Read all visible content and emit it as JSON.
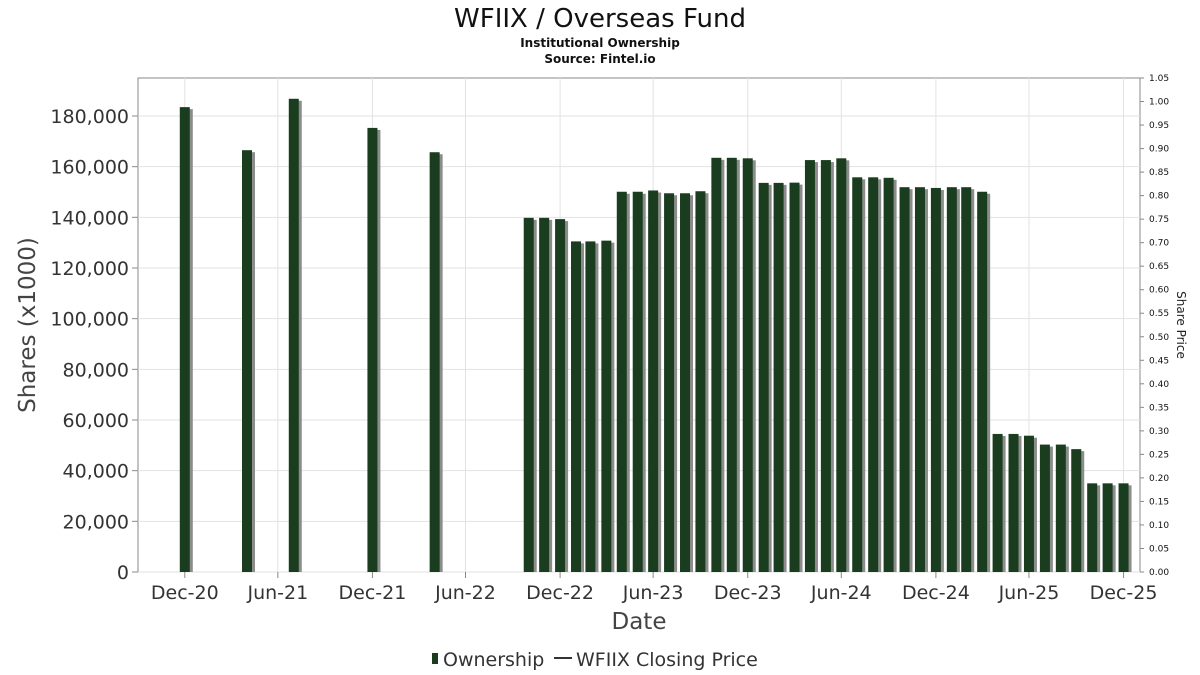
{
  "chart_data": {
    "type": "bar",
    "title": "WFIIX / Overseas Fund",
    "subtitle": "Institutional Ownership",
    "source": "Source: Fintel.io",
    "xlabel": "Date",
    "ylabel": "Shares (x1000)",
    "y2label": "Share Price",
    "ylim": [
      0,
      195000
    ],
    "y2lim": [
      0,
      1.05
    ],
    "xlim": [
      "2020-10-01",
      "2026-02-01"
    ],
    "yticks": [
      "0",
      "20,000",
      "40,000",
      "60,000",
      "80,000",
      "100,000",
      "120,000",
      "140,000",
      "160,000",
      "180,000"
    ],
    "y2ticks": [
      "0.00",
      "0.05",
      "0.10",
      "0.15",
      "0.20",
      "0.25",
      "0.30",
      "0.35",
      "0.40",
      "0.45",
      "0.50",
      "0.55",
      "0.60",
      "0.65",
      "0.70",
      "0.75",
      "0.80",
      "0.85",
      "0.90",
      "0.95",
      "1.00",
      "1.05"
    ],
    "xticks": [
      {
        "label": "Dec-20",
        "date": "2020-12-31"
      },
      {
        "label": "Jun-21",
        "date": "2021-06-30"
      },
      {
        "label": "Dec-21",
        "date": "2021-12-31"
      },
      {
        "label": "Jun-22",
        "date": "2022-06-30"
      },
      {
        "label": "Dec-22",
        "date": "2022-12-31"
      },
      {
        "label": "Jun-23",
        "date": "2023-06-30"
      },
      {
        "label": "Dec-23",
        "date": "2023-12-31"
      },
      {
        "label": "Jun-24",
        "date": "2024-06-30"
      },
      {
        "label": "Dec-24",
        "date": "2024-12-31"
      },
      {
        "label": "Jun-25",
        "date": "2025-06-30"
      },
      {
        "label": "Dec-25",
        "date": "2025-12-31"
      }
    ],
    "grid": true,
    "legend_position": "bottom",
    "series": [
      {
        "name": "Ownership",
        "color": "#1a3d1f",
        "points": [
          {
            "x": "2020-12-31",
            "y": 183500
          },
          {
            "x": "2021-05-01",
            "y": 166500
          },
          {
            "x": "2021-07-31",
            "y": 186800
          },
          {
            "x": "2021-12-31",
            "y": 175300
          },
          {
            "x": "2022-05-01",
            "y": 165700
          },
          {
            "x": "2022-10-31",
            "y": 139800
          },
          {
            "x": "2022-11-30",
            "y": 139800
          },
          {
            "x": "2022-12-31",
            "y": 139300
          },
          {
            "x": "2023-01-31",
            "y": 130500
          },
          {
            "x": "2023-02-28",
            "y": 130500
          },
          {
            "x": "2023-03-31",
            "y": 130800
          },
          {
            "x": "2023-04-30",
            "y": 150100
          },
          {
            "x": "2023-05-31",
            "y": 150100
          },
          {
            "x": "2023-06-30",
            "y": 150600
          },
          {
            "x": "2023-07-31",
            "y": 149500
          },
          {
            "x": "2023-08-31",
            "y": 149500
          },
          {
            "x": "2023-09-30",
            "y": 150300
          },
          {
            "x": "2023-10-31",
            "y": 163500
          },
          {
            "x": "2023-11-30",
            "y": 163500
          },
          {
            "x": "2023-12-31",
            "y": 163300
          },
          {
            "x": "2024-01-31",
            "y": 153600
          },
          {
            "x": "2024-02-29",
            "y": 153600
          },
          {
            "x": "2024-03-31",
            "y": 153700
          },
          {
            "x": "2024-04-30",
            "y": 162600
          },
          {
            "x": "2024-05-31",
            "y": 162600
          },
          {
            "x": "2024-06-30",
            "y": 163300
          },
          {
            "x": "2024-07-31",
            "y": 155800
          },
          {
            "x": "2024-08-31",
            "y": 155800
          },
          {
            "x": "2024-09-30",
            "y": 155600
          },
          {
            "x": "2024-10-31",
            "y": 151900
          },
          {
            "x": "2024-11-30",
            "y": 151900
          },
          {
            "x": "2024-12-31",
            "y": 151600
          },
          {
            "x": "2025-01-31",
            "y": 151900
          },
          {
            "x": "2025-02-28",
            "y": 151900
          },
          {
            "x": "2025-03-31",
            "y": 150100
          },
          {
            "x": "2025-04-30",
            "y": 54500
          },
          {
            "x": "2025-05-31",
            "y": 54500
          },
          {
            "x": "2025-06-30",
            "y": 53800
          },
          {
            "x": "2025-07-31",
            "y": 50300
          },
          {
            "x": "2025-08-31",
            "y": 50300
          },
          {
            "x": "2025-09-30",
            "y": 48500
          },
          {
            "x": "2025-10-31",
            "y": 35000
          },
          {
            "x": "2025-11-30",
            "y": 35000
          },
          {
            "x": "2025-12-31",
            "y": 35000
          }
        ]
      },
      {
        "name": "WFIIX Closing Price",
        "color": "#333333",
        "points": []
      }
    ]
  }
}
